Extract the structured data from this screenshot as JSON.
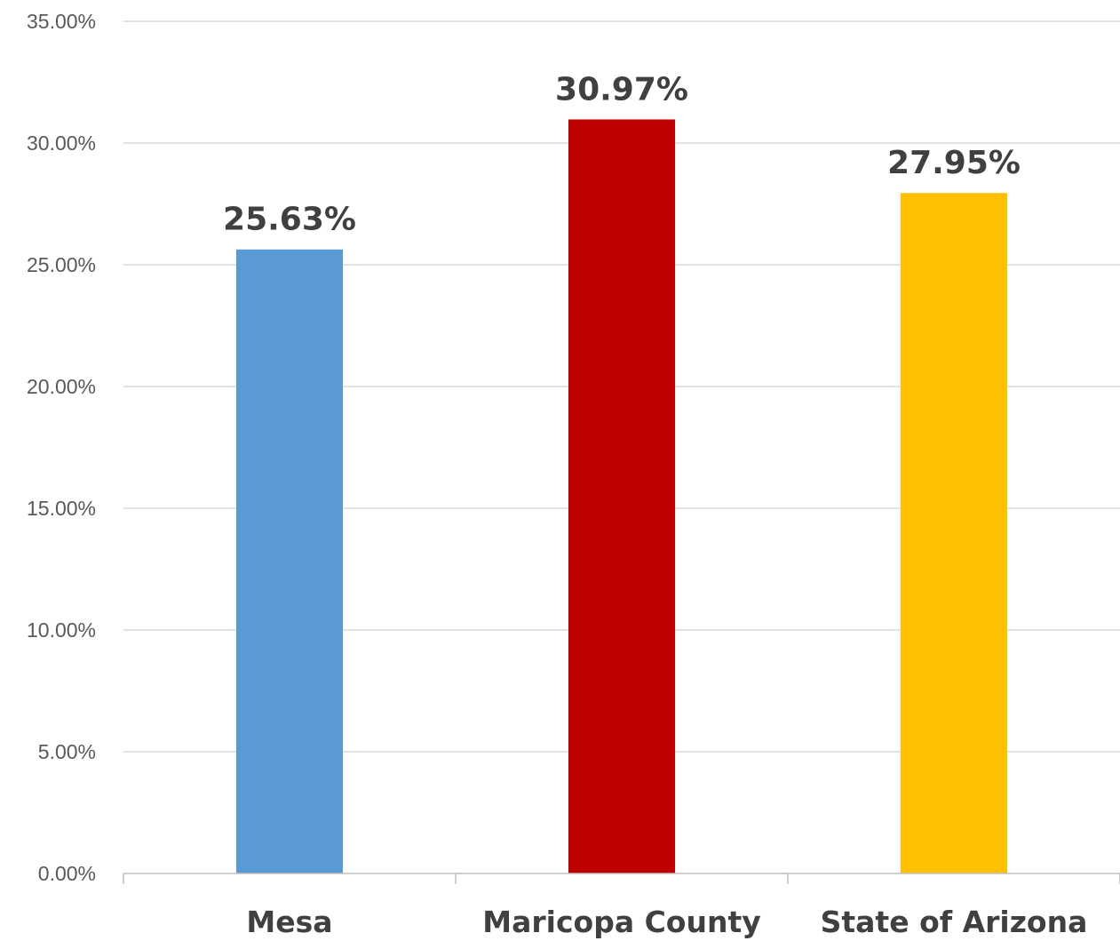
{
  "chart_data": {
    "type": "bar",
    "title": "",
    "xlabel": "",
    "ylabel": "",
    "categories": [
      "Mesa",
      "Maricopa County",
      "State of Arizona"
    ],
    "values": [
      25.63,
      30.97,
      27.95
    ],
    "data_labels": [
      "25.63%",
      "30.97%",
      "27.95%"
    ],
    "colors": [
      "#5b9bd5",
      "#c00000",
      "#ffc000"
    ],
    "ylim": [
      0,
      35
    ],
    "y_ticks": [
      0,
      5,
      10,
      15,
      20,
      25,
      30,
      35
    ],
    "y_tick_labels": [
      "0.00%",
      "5.00%",
      "10.00%",
      "15.00%",
      "20.00%",
      "25.00%",
      "30.00%",
      "35.00%"
    ],
    "grid": true,
    "legend": "none"
  }
}
